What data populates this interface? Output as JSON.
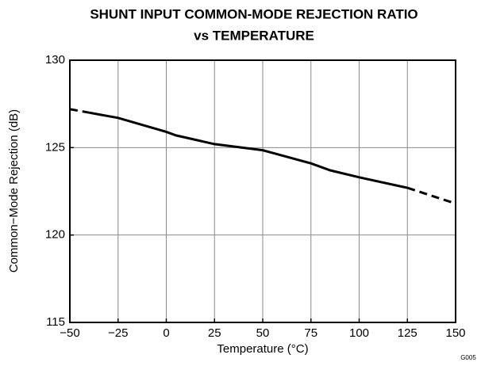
{
  "chart_data": {
    "type": "line",
    "title": [
      "SHUNT INPUT COMMON-MODE REJECTION RATIO",
      "vs TEMPERATURE"
    ],
    "x_label": "Temperature (°C)",
    "y_label": "Common−Mode Rejection (dB)",
    "note": "G005",
    "xlim": [
      -50,
      150
    ],
    "xticks": [
      {
        "value": -50,
        "label": "−50"
      },
      {
        "value": -25,
        "label": "−25"
      },
      0,
      25,
      50,
      75,
      100,
      125,
      150
    ],
    "ylim": [
      115,
      130
    ],
    "yticks": [
      115,
      120,
      125,
      130
    ],
    "grid": true,
    "series": [
      {
        "style": "dashed",
        "color": "#000000",
        "x": [
          -50,
          -40
        ],
        "values": [
          127.2,
          127.0
        ]
      },
      {
        "style": "solid",
        "color": "#000000",
        "x": [
          -40,
          -25,
          0,
          5,
          25,
          50,
          55,
          75,
          85,
          100,
          125
        ],
        "values": [
          127.0,
          126.7,
          125.9,
          125.7,
          125.2,
          124.85,
          124.7,
          124.1,
          123.7,
          123.3,
          122.7
        ]
      },
      {
        "style": "dashed",
        "color": "#000000",
        "x": [
          125,
          150
        ],
        "values": [
          122.7,
          121.8
        ]
      }
    ]
  }
}
